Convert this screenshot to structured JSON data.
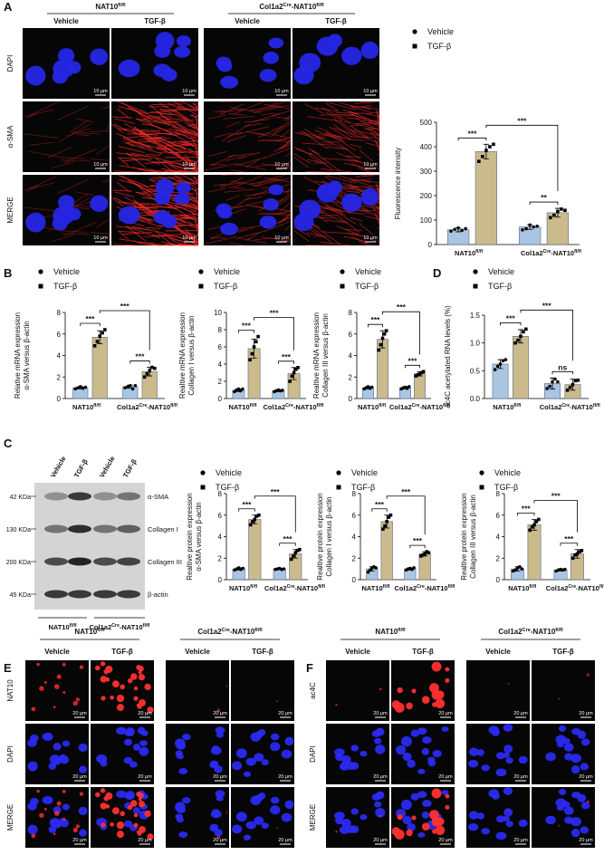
{
  "figure": {
    "panel_labels": [
      "A",
      "B",
      "C",
      "D",
      "E",
      "F"
    ],
    "genotypes": [
      [
        "NAT10",
        "fl/fl"
      ],
      [
        "Col1a2",
        "Cre",
        "-NAT10",
        "fl/fl"
      ]
    ],
    "treatments": [
      "Vehicle",
      "TGF-β"
    ],
    "panel_a": {
      "rows": [
        "DAPI",
        "α-SMA",
        "MERGE"
      ],
      "scale_bar": "10 μm"
    },
    "panel_c_blot": {
      "kda": [
        "42 KDa",
        "130 KDa",
        "200 KDa",
        "45 KDa"
      ],
      "proteins": [
        "α-SMA",
        "Collagen I",
        "Collagen III",
        "β-actin"
      ]
    },
    "panel_e": {
      "rows": [
        "NAT10",
        "DAPI",
        "MERGE"
      ],
      "scale_bar": "20 μm"
    },
    "panel_f": {
      "rows": [
        "ac4C",
        "DAPI",
        "MERGE"
      ],
      "scale_bar": "20 μm"
    }
  },
  "chart_data": [
    {
      "type": "bar",
      "y_label": [
        "Fluorescence intensity"
      ],
      "categories": [
        [
          "NAT10",
          "fl/fl"
        ],
        [
          "Col1a2",
          "Cre",
          "-NAT10",
          "fl/fl"
        ]
      ],
      "series": [
        {
          "name": "Vehicle",
          "color": "#a9c5e2",
          "marker": "circle",
          "values": [
            60,
            72
          ],
          "errors": [
            8,
            10
          ],
          "points": [
            [
              55,
              62,
              68,
              58,
              65
            ],
            [
              60,
              65,
              80,
              72,
              75
            ]
          ]
        },
        {
          "name": "TGF-β",
          "color": "#cbbb8c",
          "marker": "square",
          "values": [
            380,
            130
          ],
          "errors": [
            30,
            18
          ],
          "points": [
            [
              340,
              360,
              385,
              400,
              410
            ],
            [
              110,
              120,
              135,
              145,
              140
            ]
          ]
        }
      ],
      "ylim": [
        0,
        500
      ],
      "yticks": [
        0,
        100,
        200,
        300,
        400,
        500
      ],
      "significance": [
        "***",
        "***",
        "**"
      ]
    },
    {
      "type": "bar",
      "y_label": [
        "Relative mRNA expression",
        "α-SMA versus β-actin"
      ],
      "categories": [
        [
          "NAT10",
          "fl/fl"
        ],
        [
          "Col1a2",
          "Cre",
          "-NAT10",
          "fl/fl"
        ]
      ],
      "series": [
        {
          "name": "Vehicle",
          "color": "#a9c5e2",
          "marker": "circle",
          "values": [
            1.0,
            1.1
          ],
          "errors": [
            0.1,
            0.15
          ],
          "points": [
            [
              0.9,
              1.0,
              1.1,
              0.95,
              1.05
            ],
            [
              1.0,
              1.1,
              1.2,
              0.9,
              1.2
            ]
          ]
        },
        {
          "name": "TGF-β",
          "color": "#cbbb8c",
          "marker": "square",
          "values": [
            5.7,
            2.5
          ],
          "errors": [
            0.6,
            0.4
          ],
          "points": [
            [
              4.9,
              5.3,
              5.8,
              6.1,
              6.4
            ],
            [
              2.0,
              2.3,
              2.6,
              2.9,
              2.8
            ]
          ]
        }
      ],
      "ylim": [
        0,
        8
      ],
      "yticks": [
        0,
        2,
        4,
        6,
        8
      ],
      "significance": [
        "***",
        "***",
        "***"
      ]
    },
    {
      "type": "bar",
      "y_label": [
        "Realtive mRNA expression",
        "Collagen I versus β-actin"
      ],
      "categories": [
        [
          "NAT10",
          "fl/fl"
        ],
        [
          "Col1a2",
          "Cre",
          "-NAT10",
          "fl/fl"
        ]
      ],
      "series": [
        {
          "name": "Vehicle",
          "color": "#a9c5e2",
          "marker": "circle",
          "values": [
            0.95,
            0.9
          ],
          "errors": [
            0.15,
            0.1
          ],
          "points": [
            [
              0.8,
              1.0,
              1.1,
              0.9,
              1.1
            ],
            [
              0.8,
              0.9,
              1.0,
              0.9,
              0.95
            ]
          ]
        },
        {
          "name": "TGF-β",
          "color": "#cbbb8c",
          "marker": "square",
          "values": [
            5.8,
            2.9
          ],
          "errors": [
            1.1,
            0.7
          ],
          "points": [
            [
              4.5,
              5.2,
              6.0,
              6.6,
              7.2
            ],
            [
              2.0,
              2.6,
              3.0,
              3.4,
              3.6
            ]
          ]
        }
      ],
      "ylim": [
        0,
        10
      ],
      "yticks": [
        0,
        2,
        4,
        6,
        8,
        10
      ],
      "significance": [
        "***",
        "***",
        "***"
      ]
    },
    {
      "type": "bar",
      "y_label": [
        "Realtive mRNA expression",
        "Collagen III versus β-actin"
      ],
      "categories": [
        [
          "NAT10",
          "fl/fl"
        ],
        [
          "Col1a2",
          "Cre",
          "-NAT10",
          "fl/fl"
        ]
      ],
      "series": [
        {
          "name": "Vehicle",
          "color": "#a9c5e2",
          "marker": "circle",
          "values": [
            1.0,
            1.0
          ],
          "errors": [
            0.1,
            0.1
          ],
          "points": [
            [
              0.9,
              1.0,
              1.1,
              0.95,
              1.05
            ],
            [
              0.9,
              1.0,
              1.05,
              0.95,
              1.1
            ]
          ]
        },
        {
          "name": "TGF-β",
          "color": "#cbbb8c",
          "marker": "square",
          "values": [
            5.5,
            2.3
          ],
          "errors": [
            0.8,
            0.2
          ],
          "points": [
            [
              4.5,
              5.0,
              5.6,
              6.0,
              6.3
            ],
            [
              2.1,
              2.2,
              2.3,
              2.4,
              2.5
            ]
          ]
        }
      ],
      "ylim": [
        0,
        8
      ],
      "yticks": [
        0,
        2,
        4,
        6,
        8
      ],
      "significance": [
        "***",
        "***",
        "***"
      ]
    },
    {
      "type": "bar",
      "y_label": [
        "ac4C acetylated RNA levels (%)"
      ],
      "categories": [
        [
          "NAT10",
          "fl/fl"
        ],
        [
          "Col1a2",
          "Cre",
          "-NAT10",
          "fl/fl"
        ]
      ],
      "series": [
        {
          "name": "Vehicle",
          "color": "#a9c5e2",
          "marker": "circle",
          "values": [
            0.62,
            0.27
          ],
          "errors": [
            0.08,
            0.1
          ],
          "points": [
            [
              0.52,
              0.58,
              0.62,
              0.68,
              0.7
            ],
            [
              0.18,
              0.22,
              0.3,
              0.35,
              0.3
            ]
          ]
        },
        {
          "name": "TGF-β",
          "color": "#cbbb8c",
          "marker": "square",
          "values": [
            1.12,
            0.25
          ],
          "errors": [
            0.12,
            0.1
          ],
          "points": [
            [
              1.0,
              1.05,
              1.12,
              1.2,
              1.25
            ],
            [
              0.15,
              0.2,
              0.25,
              0.32,
              0.33
            ]
          ]
        }
      ],
      "ylim": [
        0,
        1.5
      ],
      "yticks": [
        {
          "value": 0,
          "label": "0.0"
        },
        0.5,
        {
          "value": 1,
          "label": "1.0"
        },
        1.5
      ],
      "significance": [
        "***",
        "***",
        "ns"
      ]
    },
    {
      "type": "bar",
      "y_label": [
        "Realtive protein expression",
        "α-SMA versus β-actin"
      ],
      "categories": [
        [
          "NAT10",
          "fl/fl"
        ],
        [
          "Col1a2",
          "Cre",
          "-NAT10",
          "fl/fl"
        ]
      ],
      "series": [
        {
          "name": "Vehicle",
          "color": "#a9c5e2",
          "marker": "circle",
          "values": [
            1.0,
            1.0
          ],
          "errors": [
            0.1,
            0.05
          ],
          "points": [
            [
              0.9,
              1.0,
              1.1,
              0.95,
              1.05
            ],
            [
              0.95,
              1.0,
              1.05,
              0.95,
              1.0
            ]
          ]
        },
        {
          "name": "TGF-β",
          "color": "#cbbb8c",
          "marker": "square",
          "values": [
            5.6,
            2.4
          ],
          "errors": [
            0.4,
            0.4
          ],
          "points": [
            [
              5.1,
              5.4,
              5.6,
              5.9,
              6.0
            ],
            [
              1.9,
              2.2,
              2.5,
              2.7,
              2.8
            ]
          ]
        }
      ],
      "ylim": [
        0,
        8
      ],
      "yticks": [
        0,
        2,
        4,
        6,
        8
      ],
      "significance": [
        "***",
        "***",
        "***"
      ]
    },
    {
      "type": "bar",
      "y_label": [
        "Realtive protein expression",
        "Collagen I versus β-actin"
      ],
      "categories": [
        [
          "NAT10",
          "fl/fl"
        ],
        [
          "Col1a2",
          "Cre",
          "-NAT10",
          "fl/fl"
        ]
      ],
      "series": [
        {
          "name": "Vehicle",
          "color": "#a9c5e2",
          "marker": "circle",
          "values": [
            1.0,
            1.0
          ],
          "errors": [
            0.2,
            0.1
          ],
          "points": [
            [
              0.7,
              0.9,
              1.1,
              1.2,
              1.1
            ],
            [
              0.9,
              1.0,
              1.05,
              0.95,
              1.1
            ]
          ]
        },
        {
          "name": "TGF-β",
          "color": "#cbbb8c",
          "marker": "square",
          "values": [
            5.4,
            2.4
          ],
          "errors": [
            0.6,
            0.2
          ],
          "points": [
            [
              4.7,
              5.0,
              5.4,
              5.8,
              6.0
            ],
            [
              2.2,
              2.3,
              2.4,
              2.6,
              2.5
            ]
          ]
        }
      ],
      "ylim": [
        0,
        8
      ],
      "yticks": [
        0,
        2,
        4,
        6,
        8
      ],
      "significance": [
        "***",
        "***",
        "***"
      ]
    },
    {
      "type": "bar",
      "y_label": [
        "Realtive protein expression",
        "Collagen III versus β-actin"
      ],
      "categories": [
        [
          "NAT10",
          "fl/fl"
        ],
        [
          "Col1a2",
          "Cre",
          "-NAT10",
          "fl/fl"
        ]
      ],
      "series": [
        {
          "name": "Vehicle",
          "color": "#a9c5e2",
          "marker": "circle",
          "values": [
            1.0,
            0.9
          ],
          "errors": [
            0.2,
            0.1
          ],
          "points": [
            [
              0.8,
              0.9,
              1.1,
              1.2,
              1.0
            ],
            [
              0.8,
              0.9,
              0.95,
              0.9,
              0.95
            ]
          ]
        },
        {
          "name": "TGF-β",
          "color": "#cbbb8c",
          "marker": "square",
          "values": [
            5.1,
            2.4
          ],
          "errors": [
            0.5,
            0.4
          ],
          "points": [
            [
              4.6,
              4.9,
              5.1,
              5.4,
              5.6
            ],
            [
              2.0,
              2.3,
              2.4,
              2.6,
              2.7
            ]
          ]
        }
      ],
      "ylim": [
        0,
        8
      ],
      "yticks": [
        0,
        2,
        4,
        6,
        8
      ],
      "significance": [
        "***",
        "***",
        "***"
      ]
    }
  ]
}
